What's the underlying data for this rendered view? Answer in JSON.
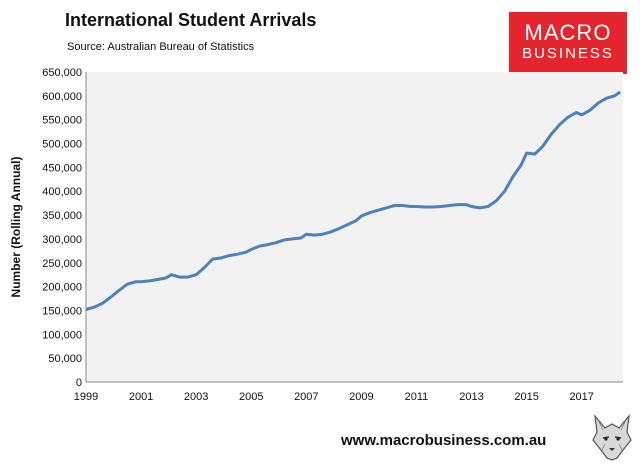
{
  "header": {
    "title": "International Student Arrivals",
    "source": "Source: Australian Bureau of Statistics"
  },
  "logo": {
    "line1": "MACRO",
    "line2": "BUSINESS",
    "color": "#e4252d"
  },
  "footer": {
    "url": "www.macrobusiness.com.au",
    "mascot_icon": "wolf-icon"
  },
  "chart_data": {
    "type": "line",
    "title": "International Student Arrivals",
    "subtitle": "Source: Australian Bureau of Statistics",
    "xlabel": "",
    "ylabel": "Number (Rolling Annual)",
    "xlim": [
      1999,
      2018.5
    ],
    "ylim": [
      0,
      650000
    ],
    "x_ticks": [
      "1999",
      "2001",
      "2003",
      "2005",
      "2007",
      "2009",
      "2011",
      "2013",
      "2015",
      "2017"
    ],
    "y_ticks": [
      "0",
      "50,000",
      "100,000",
      "150,000",
      "200,000",
      "250,000",
      "300,000",
      "350,000",
      "400,000",
      "450,000",
      "500,000",
      "550,000",
      "600,000",
      "650,000"
    ],
    "grid": false,
    "legend": "none",
    "line_color": "#4f81bd",
    "plot_background": "#f2f2f2",
    "series": [
      {
        "x": [
          1999.0,
          1999.3,
          1999.6,
          1999.9,
          2000.2,
          2000.5,
          2000.8,
          2001.0,
          2001.3,
          2001.6,
          2001.9,
          2002.1,
          2002.4,
          2002.7,
          2003.0,
          2003.3,
          2003.6,
          2003.9,
          2004.2,
          2004.5,
          2004.8,
          2005.0,
          2005.3,
          2005.6,
          2005.9,
          2006.2,
          2006.5,
          2006.8,
          2007.0,
          2007.3,
          2007.6,
          2007.9,
          2008.2,
          2008.5,
          2008.8,
          2009.0,
          2009.3,
          2009.6,
          2009.9,
          2010.2,
          2010.5,
          2010.8,
          2011.0,
          2011.3,
          2011.6,
          2011.9,
          2012.2,
          2012.5,
          2012.8,
          2013.0,
          2013.3,
          2013.6,
          2013.9,
          2014.2,
          2014.5,
          2014.8,
          2015.0,
          2015.3,
          2015.6,
          2015.9,
          2016.2,
          2016.5,
          2016.8,
          2017.0,
          2017.3,
          2017.6,
          2017.9,
          2018.2,
          2018.4
        ],
        "y": [
          152000,
          157000,
          165000,
          178000,
          192000,
          205000,
          210000,
          210000,
          212000,
          215000,
          218000,
          225000,
          220000,
          220000,
          225000,
          240000,
          258000,
          260000,
          265000,
          268000,
          272000,
          278000,
          285000,
          288000,
          292000,
          298000,
          300000,
          302000,
          310000,
          308000,
          310000,
          315000,
          322000,
          330000,
          338000,
          348000,
          355000,
          360000,
          365000,
          370000,
          370000,
          368000,
          368000,
          367000,
          367000,
          368000,
          370000,
          372000,
          372000,
          368000,
          365000,
          368000,
          380000,
          400000,
          430000,
          455000,
          480000,
          478000,
          495000,
          520000,
          540000,
          555000,
          565000,
          560000,
          570000,
          585000,
          595000,
          600000,
          608000
        ]
      }
    ]
  }
}
